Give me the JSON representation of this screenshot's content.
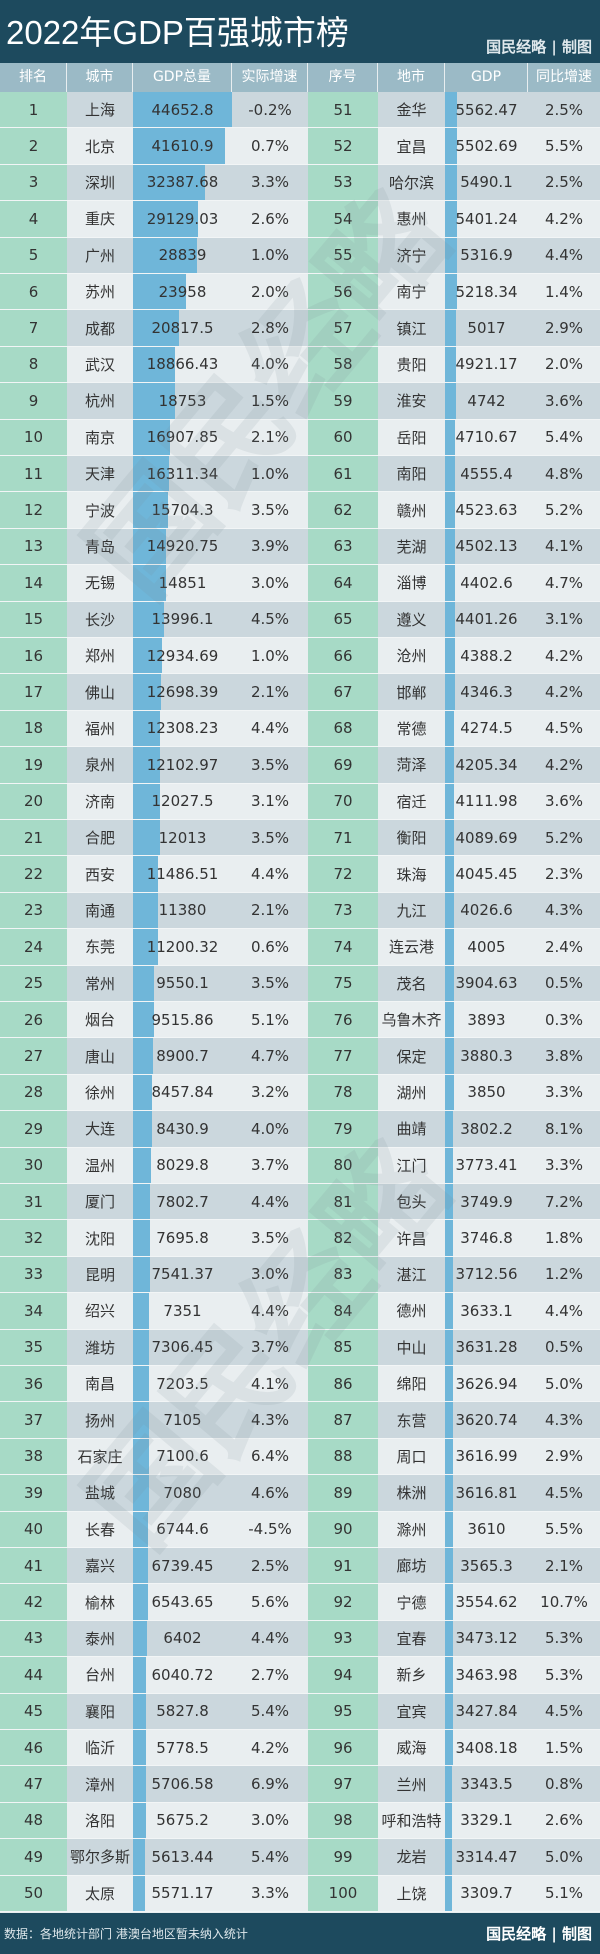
{
  "header": {
    "title": "2022年GDP百强城市榜",
    "credit": "国民经略 | 制图"
  },
  "footer": {
    "source": "数据：各地统计部门 港澳台地区暂未纳入统计",
    "credit": "国民经略 | 制图"
  },
  "watermark": "国民经略",
  "colors": {
    "header_bg": "#1d4a5e",
    "column_header_bg": "#9bbac6",
    "rank_col": "#a7dac6",
    "bar": "#6fb6d9",
    "row_dark": "#cbd7dd",
    "row_light": "#e9eef0"
  },
  "chart_data": {
    "type": "table",
    "title": "2022年GDP百强城市榜",
    "columns": [
      "排名",
      "城市",
      "GDP总量",
      "实际增速",
      "序号",
      "地市",
      "GDP",
      "同比增速"
    ],
    "left": [
      [
        1,
        "上海",
        44652.8,
        "-0.2%"
      ],
      [
        2,
        "北京",
        41610.9,
        "0.7%"
      ],
      [
        3,
        "深圳",
        32387.68,
        "3.3%"
      ],
      [
        4,
        "重庆",
        29129.03,
        "2.6%"
      ],
      [
        5,
        "广州",
        28839,
        "1.0%"
      ],
      [
        6,
        "苏州",
        23958,
        "2.0%"
      ],
      [
        7,
        "成都",
        20817.5,
        "2.8%"
      ],
      [
        8,
        "武汉",
        18866.43,
        "4.0%"
      ],
      [
        9,
        "杭州",
        18753,
        "1.5%"
      ],
      [
        10,
        "南京",
        16907.85,
        "2.1%"
      ],
      [
        11,
        "天津",
        16311.34,
        "1.0%"
      ],
      [
        12,
        "宁波",
        15704.3,
        "3.5%"
      ],
      [
        13,
        "青岛",
        14920.75,
        "3.9%"
      ],
      [
        14,
        "无锡",
        14851,
        "3.0%"
      ],
      [
        15,
        "长沙",
        13996.1,
        "4.5%"
      ],
      [
        16,
        "郑州",
        12934.69,
        "1.0%"
      ],
      [
        17,
        "佛山",
        12698.39,
        "2.1%"
      ],
      [
        18,
        "福州",
        12308.23,
        "4.4%"
      ],
      [
        19,
        "泉州",
        12102.97,
        "3.5%"
      ],
      [
        20,
        "济南",
        12027.5,
        "3.1%"
      ],
      [
        21,
        "合肥",
        12013,
        "3.5%"
      ],
      [
        22,
        "西安",
        11486.51,
        "4.4%"
      ],
      [
        23,
        "南通",
        11380,
        "2.1%"
      ],
      [
        24,
        "东莞",
        11200.32,
        "0.6%"
      ],
      [
        25,
        "常州",
        9550.1,
        "3.5%"
      ],
      [
        26,
        "烟台",
        9515.86,
        "5.1%"
      ],
      [
        27,
        "唐山",
        8900.7,
        "4.7%"
      ],
      [
        28,
        "徐州",
        8457.84,
        "3.2%"
      ],
      [
        29,
        "大连",
        8430.9,
        "4.0%"
      ],
      [
        30,
        "温州",
        8029.8,
        "3.7%"
      ],
      [
        31,
        "厦门",
        7802.7,
        "4.4%"
      ],
      [
        32,
        "沈阳",
        7695.8,
        "3.5%"
      ],
      [
        33,
        "昆明",
        7541.37,
        "3.0%"
      ],
      [
        34,
        "绍兴",
        7351,
        "4.4%"
      ],
      [
        35,
        "潍坊",
        7306.45,
        "3.7%"
      ],
      [
        36,
        "南昌",
        7203.5,
        "4.1%"
      ],
      [
        37,
        "扬州",
        7105,
        "4.3%"
      ],
      [
        38,
        "石家庄",
        7100.6,
        "6.4%"
      ],
      [
        39,
        "盐城",
        7080,
        "4.6%"
      ],
      [
        40,
        "长春",
        6744.6,
        "-4.5%"
      ],
      [
        41,
        "嘉兴",
        6739.45,
        "2.5%"
      ],
      [
        42,
        "榆林",
        6543.65,
        "5.6%"
      ],
      [
        43,
        "泰州",
        6402,
        "4.4%"
      ],
      [
        44,
        "台州",
        6040.72,
        "2.7%"
      ],
      [
        45,
        "襄阳",
        5827.8,
        "5.4%"
      ],
      [
        46,
        "临沂",
        5778.5,
        "4.2%"
      ],
      [
        47,
        "漳州",
        5706.58,
        "6.9%"
      ],
      [
        48,
        "洛阳",
        5675.2,
        "3.0%"
      ],
      [
        49,
        "鄂尔多斯",
        5613.44,
        "5.4%"
      ],
      [
        50,
        "太原",
        5571.17,
        "3.3%"
      ]
    ],
    "right": [
      [
        51,
        "金华",
        5562.47,
        "2.5%"
      ],
      [
        52,
        "宜昌",
        5502.69,
        "5.5%"
      ],
      [
        53,
        "哈尔滨",
        5490.1,
        "2.5%"
      ],
      [
        54,
        "惠州",
        5401.24,
        "4.2%"
      ],
      [
        55,
        "济宁",
        5316.9,
        "4.4%"
      ],
      [
        56,
        "南宁",
        5218.34,
        "1.4%"
      ],
      [
        57,
        "镇江",
        5017,
        "2.9%"
      ],
      [
        58,
        "贵阳",
        4921.17,
        "2.0%"
      ],
      [
        59,
        "淮安",
        4742,
        "3.6%"
      ],
      [
        60,
        "岳阳",
        4710.67,
        "5.4%"
      ],
      [
        61,
        "南阳",
        4555.4,
        "4.8%"
      ],
      [
        62,
        "赣州",
        4523.63,
        "5.2%"
      ],
      [
        63,
        "芜湖",
        4502.13,
        "4.1%"
      ],
      [
        64,
        "淄博",
        4402.6,
        "4.7%"
      ],
      [
        65,
        "遵义",
        4401.26,
        "3.1%"
      ],
      [
        66,
        "沧州",
        4388.2,
        "4.2%"
      ],
      [
        67,
        "邯郸",
        4346.3,
        "4.2%"
      ],
      [
        68,
        "常德",
        4274.5,
        "4.5%"
      ],
      [
        69,
        "菏泽",
        4205.34,
        "4.2%"
      ],
      [
        70,
        "宿迁",
        4111.98,
        "3.6%"
      ],
      [
        71,
        "衡阳",
        4089.69,
        "5.2%"
      ],
      [
        72,
        "珠海",
        4045.45,
        "2.3%"
      ],
      [
        73,
        "九江",
        4026.6,
        "4.3%"
      ],
      [
        74,
        "连云港",
        4005,
        "2.4%"
      ],
      [
        75,
        "茂名",
        3904.63,
        "0.5%"
      ],
      [
        76,
        "乌鲁木齐",
        3893,
        "0.3%"
      ],
      [
        77,
        "保定",
        3880.3,
        "3.8%"
      ],
      [
        78,
        "湖州",
        3850,
        "3.3%"
      ],
      [
        79,
        "曲靖",
        3802.2,
        "8.1%"
      ],
      [
        80,
        "江门",
        3773.41,
        "3.3%"
      ],
      [
        81,
        "包头",
        3749.9,
        "7.2%"
      ],
      [
        82,
        "许昌",
        3746.8,
        "1.8%"
      ],
      [
        83,
        "湛江",
        3712.56,
        "1.2%"
      ],
      [
        84,
        "德州",
        3633.1,
        "4.4%"
      ],
      [
        85,
        "中山",
        3631.28,
        "0.5%"
      ],
      [
        86,
        "绵阳",
        3626.94,
        "5.0%"
      ],
      [
        87,
        "东营",
        3620.74,
        "4.3%"
      ],
      [
        88,
        "周口",
        3616.99,
        "2.9%"
      ],
      [
        89,
        "株洲",
        3616.81,
        "4.5%"
      ],
      [
        90,
        "滁州",
        3610,
        "5.5%"
      ],
      [
        91,
        "廊坊",
        3565.3,
        "2.1%"
      ],
      [
        92,
        "宁德",
        3554.62,
        "10.7%"
      ],
      [
        93,
        "宜春",
        3473.12,
        "5.3%"
      ],
      [
        94,
        "新乡",
        3463.98,
        "5.3%"
      ],
      [
        95,
        "宜宾",
        3427.84,
        "4.5%"
      ],
      [
        96,
        "威海",
        3408.18,
        "1.5%"
      ],
      [
        97,
        "兰州",
        3343.5,
        "0.8%"
      ],
      [
        98,
        "呼和浩特",
        3329.1,
        "2.6%"
      ],
      [
        99,
        "龙岩",
        3314.47,
        "5.0%"
      ],
      [
        100,
        "上饶",
        3309.7,
        "5.1%"
      ]
    ]
  }
}
